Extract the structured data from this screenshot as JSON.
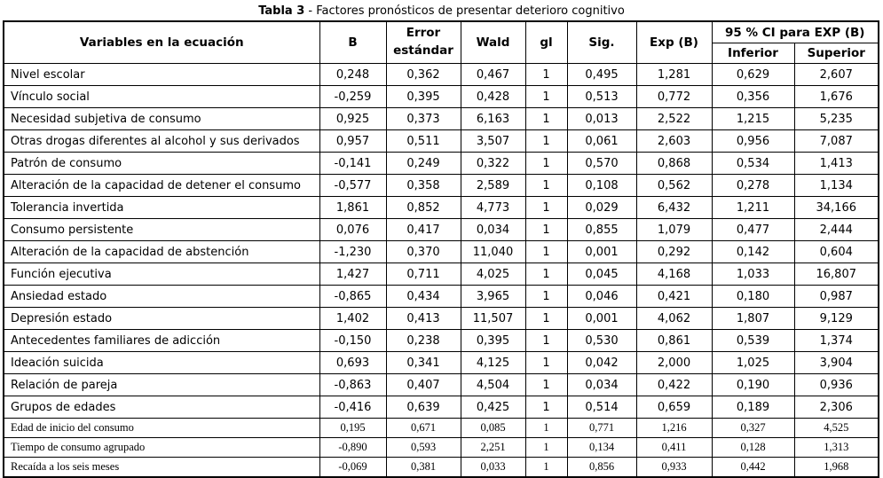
{
  "title": {
    "bold": "Tabla 3",
    "rest": " - Factores pronósticos de presentar deterioro cognitivo"
  },
  "table": {
    "headers": {
      "variables": "Variables en la ecuación",
      "b": "B",
      "error_line1": "Error",
      "error_line2": "estándar",
      "wald": "Wald",
      "gl": "gl",
      "sig": "Sig.",
      "exp_b": "Exp (B)",
      "ci_group": "95 % CI para EXP (B)",
      "inferior": "Inferior",
      "superior": "Superior"
    },
    "rows": [
      {
        "variable": "Nivel escolar",
        "b": "0,248",
        "error": "0,362",
        "wald": "0,467",
        "gl": "1",
        "sig": "0,495",
        "exp_b": "1,281",
        "inferior": "0,629",
        "superior": "2,607",
        "serif": false
      },
      {
        "variable": "Vínculo social",
        "b": "-0,259",
        "error": "0,395",
        "wald": "0,428",
        "gl": "1",
        "sig": "0,513",
        "exp_b": "0,772",
        "inferior": "0,356",
        "superior": "1,676",
        "serif": false
      },
      {
        "variable": "Necesidad subjetiva de consumo",
        "b": "0,925",
        "error": "0,373",
        "wald": "6,163",
        "gl": "1",
        "sig": "0,013",
        "exp_b": "2,522",
        "inferior": "1,215",
        "superior": "5,235",
        "serif": false
      },
      {
        "variable": "Otras drogas diferentes al alcohol y sus derivados",
        "b": "0,957",
        "error": "0,511",
        "wald": "3,507",
        "gl": "1",
        "sig": "0,061",
        "exp_b": "2,603",
        "inferior": "0,956",
        "superior": "7,087",
        "serif": false
      },
      {
        "variable": "Patrón de consumo",
        "b": "-0,141",
        "error": "0,249",
        "wald": "0,322",
        "gl": "1",
        "sig": "0,570",
        "exp_b": "0,868",
        "inferior": "0,534",
        "superior": "1,413",
        "serif": false
      },
      {
        "variable": "Alteración de la capacidad de detener el consumo",
        "b": "-0,577",
        "error": "0,358",
        "wald": "2,589",
        "gl": "1",
        "sig": "0,108",
        "exp_b": "0,562",
        "inferior": "0,278",
        "superior": "1,134",
        "serif": false
      },
      {
        "variable": "Tolerancia invertida",
        "b": "1,861",
        "error": "0,852",
        "wald": "4,773",
        "gl": "1",
        "sig": "0,029",
        "exp_b": "6,432",
        "inferior": "1,211",
        "superior": "34,166",
        "serif": false
      },
      {
        "variable": "Consumo persistente",
        "b": "0,076",
        "error": "0,417",
        "wald": "0,034",
        "gl": "1",
        "sig": "0,855",
        "exp_b": "1,079",
        "inferior": "0,477",
        "superior": "2,444",
        "serif": false
      },
      {
        "variable": "Alteración de la capacidad de abstención",
        "b": "-1,230",
        "error": "0,370",
        "wald": "11,040",
        "gl": "1",
        "sig": "0,001",
        "exp_b": "0,292",
        "inferior": "0,142",
        "superior": "0,604",
        "serif": false
      },
      {
        "variable": "Función ejecutiva",
        "b": "1,427",
        "error": "0,711",
        "wald": "4,025",
        "gl": "1",
        "sig": "0,045",
        "exp_b": "4,168",
        "inferior": "1,033",
        "superior": "16,807",
        "serif": false
      },
      {
        "variable": "Ansiedad estado",
        "b": "-0,865",
        "error": "0,434",
        "wald": "3,965",
        "gl": "1",
        "sig": "0,046",
        "exp_b": "0,421",
        "inferior": "0,180",
        "superior": "0,987",
        "serif": false
      },
      {
        "variable": "Depresión estado",
        "b": "1,402",
        "error": "0,413",
        "wald": "11,507",
        "gl": "1",
        "sig": "0,001",
        "exp_b": "4,062",
        "inferior": "1,807",
        "superior": "9,129",
        "serif": false
      },
      {
        "variable": "Antecedentes familiares de adicción",
        "b": "-0,150",
        "error": "0,238",
        "wald": "0,395",
        "gl": "1",
        "sig": "0,530",
        "exp_b": "0,861",
        "inferior": "0,539",
        "superior": "1,374",
        "serif": false
      },
      {
        "variable": "Ideación suicida",
        "b": "0,693",
        "error": "0,341",
        "wald": "4,125",
        "gl": "1",
        "sig": "0,042",
        "exp_b": "2,000",
        "inferior": "1,025",
        "superior": "3,904",
        "serif": false
      },
      {
        "variable": "Relación de pareja",
        "b": "-0,863",
        "error": "0,407",
        "wald": "4,504",
        "gl": "1",
        "sig": "0,034",
        "exp_b": "0,422",
        "inferior": "0,190",
        "superior": "0,936",
        "serif": false
      },
      {
        "variable": "Grupos de edades",
        "b": "-0,416",
        "error": "0,639",
        "wald": "0,425",
        "gl": "1",
        "sig": "0,514",
        "exp_b": "0,659",
        "inferior": "0,189",
        "superior": "2,306",
        "serif": false
      },
      {
        "variable": "Edad de inicio del consumo",
        "b": "0,195",
        "error": "0,671",
        "wald": "0,085",
        "gl": "1",
        "sig": "0,771",
        "exp_b": "1,216",
        "inferior": "0,327",
        "superior": "4,525",
        "serif": true
      },
      {
        "variable": "Tiempo de consumo agrupado",
        "b": "-0,890",
        "error": "0,593",
        "wald": "2,251",
        "gl": "1",
        "sig": "0,134",
        "exp_b": "0,411",
        "inferior": "0,128",
        "superior": "1,313",
        "serif": true
      },
      {
        "variable": "Recaída a los seis meses",
        "b": "-0,069",
        "error": "0,381",
        "wald": "0,033",
        "gl": "1",
        "sig": "0,856",
        "exp_b": "0,933",
        "inferior": "0,442",
        "superior": "1,968",
        "serif": true
      }
    ]
  }
}
